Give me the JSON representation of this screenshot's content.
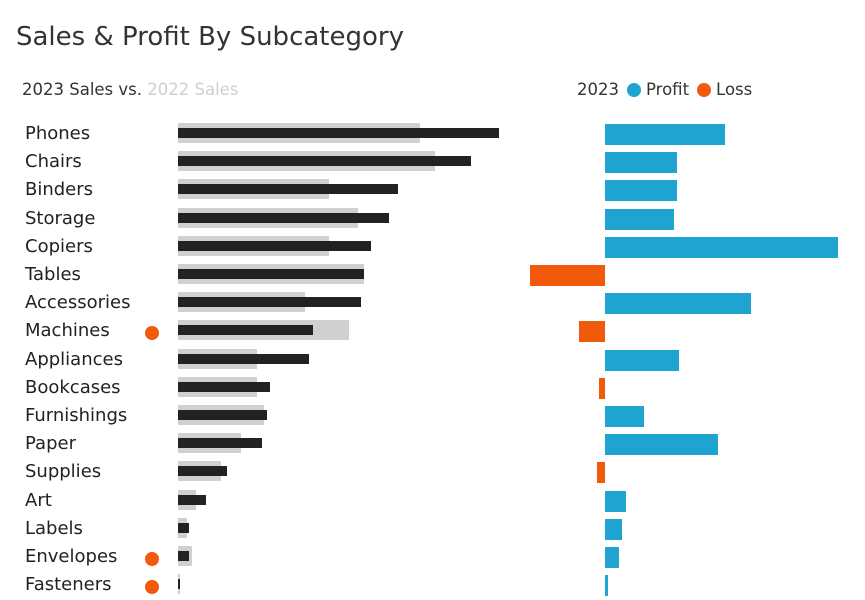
{
  "title": "Sales & Profit By Subcategory",
  "sales_legend": {
    "current": "2023 Sales vs.",
    "previous": "2022 Sales"
  },
  "profit_legend": {
    "year": "2023",
    "profit_label": "Profit",
    "loss_label": "Loss"
  },
  "colors": {
    "sales_2023": "#222222",
    "sales_2022": "#d0d0d0",
    "profit": "#1fa3d1",
    "loss": "#f15a0b",
    "flag": "#f15a0b"
  },
  "chart_data": {
    "type": "bar",
    "categories": [
      "Phones",
      "Chairs",
      "Binders",
      "Storage",
      "Copiers",
      "Tables",
      "Accessories",
      "Machines",
      "Appliances",
      "Bookcases",
      "Furnishings",
      "Paper",
      "Supplies",
      "Art",
      "Labels",
      "Envelopes",
      "Fasteners"
    ],
    "series": [
      {
        "name": "2023 Sales",
        "values": [
          105000,
          96000,
          72000,
          69000,
          63000,
          61000,
          60000,
          44000,
          43000,
          30000,
          29000,
          27500,
          16000,
          9000,
          3600,
          3500,
          800
        ]
      },
      {
        "name": "2022 Sales",
        "values": [
          79000,
          84000,
          49500,
          59000,
          49500,
          61000,
          41500,
          56000,
          26000,
          26000,
          28000,
          20500,
          14000,
          6000,
          2800,
          4700,
          700
        ]
      },
      {
        "name": "Profit",
        "values": [
          12900,
          7700,
          7700,
          7400,
          25000,
          -8100,
          15700,
          -2800,
          7900,
          -600,
          4200,
          12100,
          -900,
          2300,
          1800,
          1500,
          300
        ]
      }
    ],
    "flagged": [
      "Machines",
      "Envelopes",
      "Fasteners"
    ],
    "sales_xlim": [
      0,
      110000
    ],
    "profit_xlim": [
      -8100,
      25000
    ],
    "grid": false
  }
}
